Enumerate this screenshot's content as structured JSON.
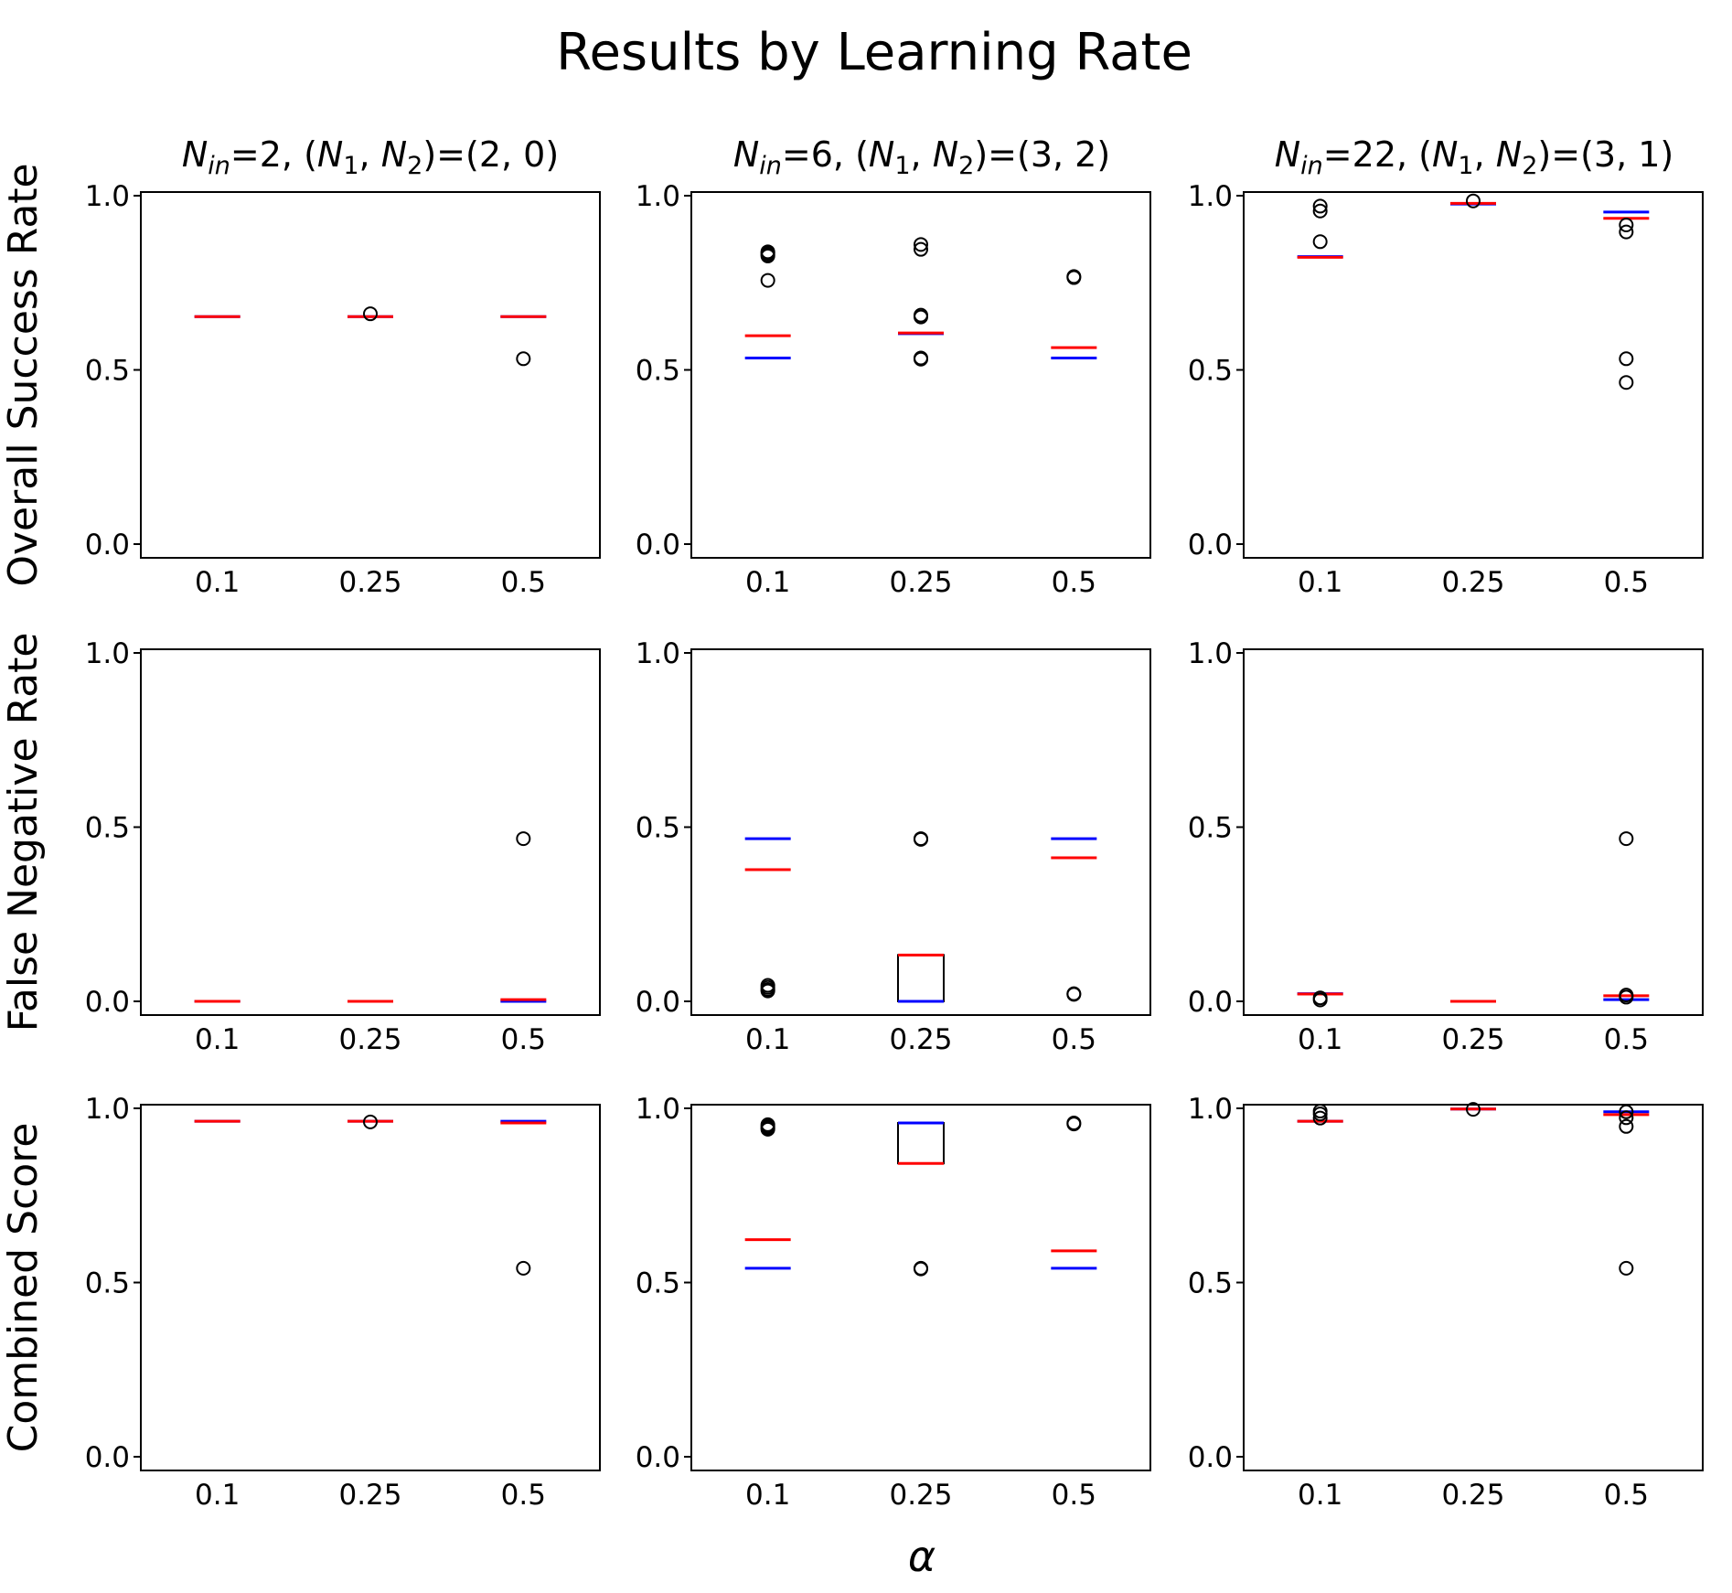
{
  "figure": {
    "title": "Results by Learning Rate",
    "xlabel": "α",
    "columns": [
      {
        "n_in": "2",
        "pair": "(2, 0)"
      },
      {
        "n_in": "6",
        "pair": "(3, 2)"
      },
      {
        "n_in": "22",
        "pair": "(3, 1)"
      }
    ],
    "rows": [
      "Overall Success Rate",
      "False Negative Rate",
      "Combined Score"
    ]
  },
  "chart_data": {
    "type": "box",
    "categories": [
      "0.1",
      "0.25",
      "0.5"
    ],
    "ylim": [
      0,
      1
    ],
    "yticks": [
      "0.0",
      "0.5",
      "1.0"
    ],
    "grid": false,
    "legend": "none",
    "colors": {
      "median": "#ff0000",
      "mean": "#0000ff",
      "box": "#000000",
      "outlier": "#000000"
    },
    "panels": [
      {
        "row": "Overall Success Rate",
        "col": "(2, 0)",
        "boxes": [
          {
            "cat": "0.1",
            "median": 0.653,
            "mean": 0.653,
            "fliers": []
          },
          {
            "cat": "0.25",
            "median": 0.653,
            "mean": 0.653,
            "fliers": [
              0.661
            ]
          },
          {
            "cat": "0.5",
            "median": 0.653,
            "mean": 0.653,
            "fliers": [
              0.532
            ]
          }
        ]
      },
      {
        "row": "Overall Success Rate",
        "col": "(3, 2)",
        "boxes": [
          {
            "cat": "0.1",
            "median": 0.598,
            "mean": 0.534,
            "fliers": [
              0.839,
              0.836,
              0.831,
              0.827,
              0.757
            ]
          },
          {
            "cat": "0.25",
            "median": 0.606,
            "mean": 0.604,
            "fliers": [
              0.86,
              0.846,
              0.657,
              0.652,
              0.534,
              0.531
            ]
          },
          {
            "cat": "0.5",
            "median": 0.564,
            "mean": 0.534,
            "fliers": [
              0.768,
              0.765
            ]
          }
        ]
      },
      {
        "row": "Overall Success Rate",
        "col": "(3, 1)",
        "boxes": [
          {
            "cat": "0.1",
            "median": 0.823,
            "mean": 0.825,
            "fliers": [
              0.97,
              0.956,
              0.868
            ]
          },
          {
            "cat": "0.25",
            "median": 0.978,
            "mean": 0.976,
            "fliers": [
              0.985
            ]
          },
          {
            "cat": "0.5",
            "median": 0.935,
            "mean": 0.953,
            "fliers": [
              0.916,
              0.896,
              0.532,
              0.464
            ]
          }
        ]
      },
      {
        "row": "False Negative Rate",
        "col": "(2, 0)",
        "boxes": [
          {
            "cat": "0.1",
            "median": 0.0,
            "mean": 0.0,
            "fliers": []
          },
          {
            "cat": "0.25",
            "median": 0.0,
            "mean": 0.0,
            "fliers": []
          },
          {
            "cat": "0.5",
            "median": 0.005,
            "mean": 0.0,
            "fliers": [
              0.467
            ]
          }
        ]
      },
      {
        "row": "False Negative Rate",
        "col": "(3, 2)",
        "boxes": [
          {
            "cat": "0.1",
            "median": 0.378,
            "mean": 0.467,
            "fliers": [
              0.046,
              0.04,
              0.034,
              0.03
            ]
          },
          {
            "cat": "0.25",
            "median": 0.133,
            "mean": 0.0,
            "q1": 0.0,
            "q3": 0.133,
            "fliers": [
              0.467,
              0.465
            ]
          },
          {
            "cat": "0.5",
            "median": 0.412,
            "mean": 0.467,
            "fliers": [
              0.022,
              0.02
            ]
          }
        ]
      },
      {
        "row": "False Negative Rate",
        "col": "(3, 1)",
        "boxes": [
          {
            "cat": "0.1",
            "median": 0.021,
            "mean": 0.022,
            "fliers": [
              0.01,
              0.004
            ]
          },
          {
            "cat": "0.25",
            "median": 0.0,
            "mean": 0.0,
            "fliers": []
          },
          {
            "cat": "0.5",
            "median": 0.016,
            "mean": 0.005,
            "fliers": [
              0.467,
              0.018,
              0.012
            ]
          }
        ]
      },
      {
        "row": "Combined Score",
        "col": "(2, 0)",
        "boxes": [
          {
            "cat": "0.1",
            "median": 0.963,
            "mean": 0.963,
            "fliers": []
          },
          {
            "cat": "0.25",
            "median": 0.963,
            "mean": 0.963,
            "fliers": [
              0.961
            ]
          },
          {
            "cat": "0.5",
            "median": 0.958,
            "mean": 0.963,
            "fliers": [
              0.541
            ]
          }
        ]
      },
      {
        "row": "Combined Score",
        "col": "(3, 2)",
        "boxes": [
          {
            "cat": "0.1",
            "median": 0.623,
            "mean": 0.541,
            "fliers": [
              0.953,
              0.948,
              0.944,
              0.94
            ]
          },
          {
            "cat": "0.25",
            "median": 0.842,
            "mean": 0.958,
            "q1": 0.842,
            "q3": 0.958,
            "fliers": [
              0.541,
              0.539
            ]
          },
          {
            "cat": "0.5",
            "median": 0.591,
            "mean": 0.541,
            "fliers": [
              0.958,
              0.955
            ]
          }
        ]
      },
      {
        "row": "Combined Score",
        "col": "(3, 1)",
        "boxes": [
          {
            "cat": "0.1",
            "median": 0.963,
            "mean": 0.963,
            "fliers": [
              0.992,
              0.984,
              0.972
            ]
          },
          {
            "cat": "0.25",
            "median": 0.998,
            "mean": 0.998,
            "fliers": [
              0.997
            ]
          },
          {
            "cat": "0.5",
            "median": 0.982,
            "mean": 0.99,
            "fliers": [
              0.99,
              0.973,
              0.948,
              0.541
            ]
          }
        ]
      }
    ]
  }
}
